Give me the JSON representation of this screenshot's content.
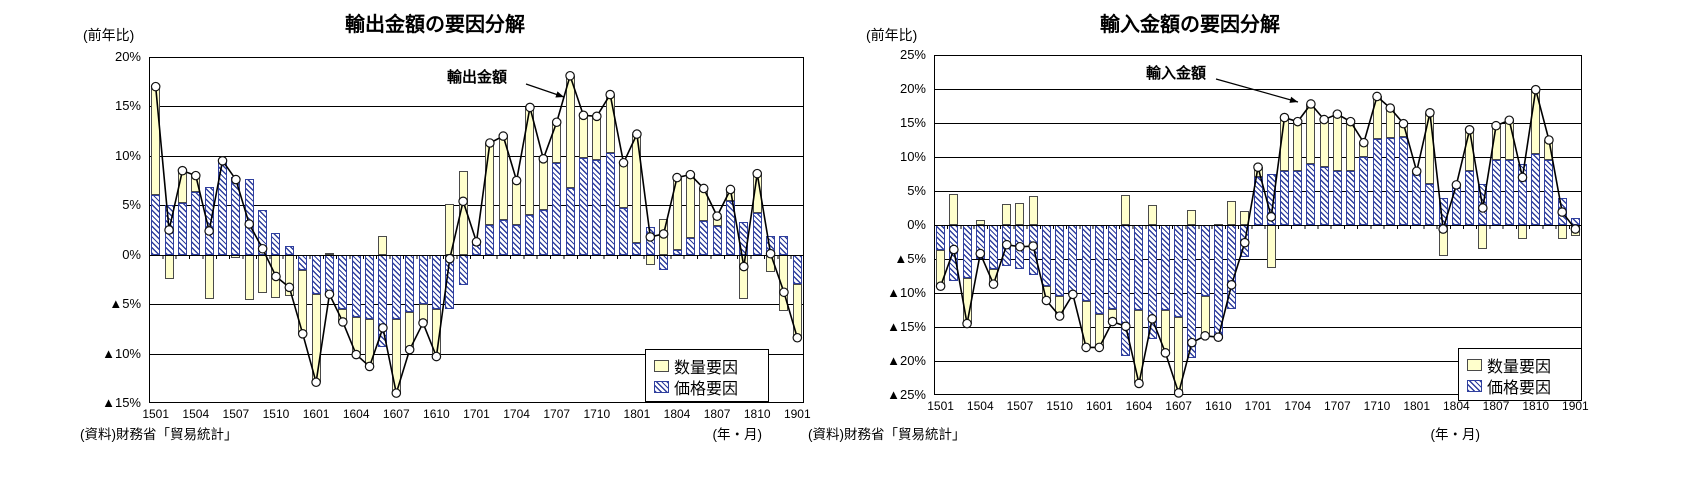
{
  "charts": [
    {
      "title": "輸出金額の要因分解",
      "y_axis_unit_label": "(前年比)",
      "x_axis_unit_label": "(年・月)",
      "source": "(資料)財務省「貿易統計」",
      "annotation_label": "輸出金額",
      "legend": [
        {
          "label": "数量要因",
          "swatch": "quantity"
        },
        {
          "label": "価格要因",
          "swatch": "price"
        }
      ],
      "chart_data": {
        "type": "stacked-bar-line",
        "categories": [
          "1501",
          "1502",
          "1503",
          "1504",
          "1505",
          "1506",
          "1507",
          "1508",
          "1509",
          "1510",
          "1511",
          "1512",
          "1601",
          "1602",
          "1603",
          "1604",
          "1605",
          "1606",
          "1607",
          "1608",
          "1609",
          "1610",
          "1611",
          "1612",
          "1701",
          "1702",
          "1703",
          "1704",
          "1705",
          "1706",
          "1707",
          "1708",
          "1709",
          "1710",
          "1711",
          "1712",
          "1801",
          "1802",
          "1803",
          "1804",
          "1805",
          "1806",
          "1807",
          "1808",
          "1809",
          "1810",
          "1811",
          "1812",
          "1901"
        ],
        "x_tick_labels_shown": [
          "1501",
          "1504",
          "1507",
          "1510",
          "1601",
          "1604",
          "1607",
          "1610",
          "1701",
          "1704",
          "1707",
          "1710",
          "1801",
          "1804",
          "1807",
          "1810",
          "1901"
        ],
        "series": [
          {
            "name": "数量要因",
            "role": "bar-quantity",
            "values": [
              11.0,
              -2.5,
              3.3,
              1.7,
              -4.5,
              0.2,
              -0.3,
              -4.6,
              -3.9,
              -4.4,
              -4.2,
              -6.5,
              -8.9,
              0.2,
              -1.3,
              -3.8,
              -4.8,
              1.9,
              -7.5,
              -3.8,
              -1.9,
              -4.8,
              5.1,
              8.5,
              0.3,
              8.3,
              8.5,
              4.5,
              10.9,
              5.2,
              4.1,
              11.4,
              4.3,
              4.4,
              5.9,
              4.6,
              11.0,
              -1.0,
              3.6,
              7.3,
              6.4,
              3.3,
              1.0,
              1.2,
              -4.5,
              4.0,
              -1.8,
              -5.7,
              -5.4
            ]
          },
          {
            "name": "価格要因",
            "role": "bar-price",
            "values": [
              6.0,
              5.0,
              5.2,
              6.3,
              6.9,
              9.3,
              7.9,
              7.7,
              4.5,
              2.2,
              0.9,
              -1.5,
              -4.0,
              -4.2,
              -5.5,
              -6.3,
              -6.5,
              -9.3,
              -6.5,
              -5.8,
              -5.0,
              -5.5,
              -5.5,
              -3.1,
              1.0,
              3.0,
              3.5,
              3.0,
              4.0,
              4.5,
              9.3,
              6.7,
              9.8,
              9.6,
              10.3,
              4.7,
              1.2,
              2.8,
              -1.5,
              0.5,
              1.7,
              3.4,
              2.9,
              5.4,
              3.3,
              4.2,
              1.9,
              1.9,
              -3.0
            ]
          },
          {
            "name": "輸出金額",
            "role": "line-total",
            "values": [
              17.0,
              2.5,
              8.5,
              8.0,
              2.4,
              9.5,
              7.6,
              3.1,
              0.6,
              -2.2,
              -3.3,
              -8.0,
              -12.9,
              -4.0,
              -6.8,
              -10.1,
              -11.3,
              -7.4,
              -14.0,
              -9.6,
              -6.9,
              -10.3,
              -0.4,
              5.4,
              1.3,
              11.3,
              12.0,
              7.5,
              14.9,
              9.7,
              13.4,
              18.1,
              14.1,
              14.0,
              16.2,
              9.3,
              12.2,
              1.8,
              2.1,
              7.8,
              8.1,
              6.7,
              3.9,
              6.6,
              -1.2,
              8.2,
              0.1,
              -3.8,
              -8.4
            ]
          }
        ],
        "ylim": [
          -15,
          20
        ],
        "ytick_step": 5,
        "negative_tick_prefix": "▲",
        "grid": true,
        "legend_position": "inside-bottom-right"
      }
    },
    {
      "title": "輸入金額の要因分解",
      "y_axis_unit_label": "(前年比)",
      "x_axis_unit_label": "(年・月)",
      "source": "(資料)財務省「貿易統計」",
      "annotation_label": "輸入金額",
      "legend": [
        {
          "label": "数量要因",
          "swatch": "quantity"
        },
        {
          "label": "価格要因",
          "swatch": "price"
        }
      ],
      "chart_data": {
        "type": "stacked-bar-line",
        "categories": [
          "1501",
          "1502",
          "1503",
          "1504",
          "1505",
          "1506",
          "1507",
          "1508",
          "1509",
          "1510",
          "1511",
          "1512",
          "1601",
          "1602",
          "1603",
          "1604",
          "1605",
          "1606",
          "1607",
          "1608",
          "1609",
          "1610",
          "1611",
          "1612",
          "1701",
          "1702",
          "1703",
          "1704",
          "1705",
          "1706",
          "1707",
          "1708",
          "1709",
          "1710",
          "1711",
          "1712",
          "1801",
          "1802",
          "1803",
          "1804",
          "1805",
          "1806",
          "1807",
          "1808",
          "1809",
          "1810",
          "1811",
          "1812",
          "1901"
        ],
        "x_tick_labels_shown": [
          "1501",
          "1504",
          "1507",
          "1510",
          "1601",
          "1604",
          "1607",
          "1610",
          "1701",
          "1704",
          "1707",
          "1710",
          "1801",
          "1804",
          "1807",
          "1810",
          "1901"
        ],
        "series": [
          {
            "name": "数量要因",
            "role": "bar-quantity",
            "values": [
              -5.3,
              4.6,
              -6.7,
              0.8,
              -2.2,
              3.1,
              3.2,
              4.3,
              -2.1,
              -3.0,
              -0.2,
              -6.8,
              -4.9,
              -1.8,
              4.4,
              -10.8,
              2.9,
              -6.3,
              -11.2,
              2.2,
              -5.8,
              0.2,
              3.6,
              2.1,
              1.5,
              -6.3,
              7.8,
              7.2,
              8.8,
              7.0,
              8.3,
              7.2,
              2.1,
              6.3,
              4.4,
              1.9,
              0.4,
              10.5,
              -4.6,
              0.4,
              6.0,
              -3.5,
              5.1,
              5.9,
              -2.0,
              9.4,
              3.0,
              -2.1,
              -1.6
            ]
          },
          {
            "name": "価格要因",
            "role": "bar-price",
            "values": [
              -3.7,
              -8.2,
              -7.8,
              -5.0,
              -6.5,
              -6.0,
              -6.4,
              -7.4,
              -9.0,
              -10.4,
              -10.0,
              -11.2,
              -13.1,
              -12.4,
              -19.3,
              -12.5,
              -16.7,
              -12.5,
              -13.5,
              -19.5,
              -10.5,
              -16.7,
              -12.4,
              -4.7,
              7.0,
              7.5,
              8.0,
              8.0,
              9.0,
              8.5,
              8.0,
              8.0,
              10.0,
              12.6,
              12.8,
              13.0,
              7.5,
              6.0,
              4.0,
              5.5,
              8.0,
              6.0,
              9.5,
              9.5,
              9.0,
              10.5,
              9.5,
              4.0,
              1.0
            ]
          },
          {
            "name": "輸入金額",
            "role": "line-total",
            "values": [
              -9.0,
              -3.6,
              -14.5,
              -4.2,
              -8.7,
              -2.9,
              -3.2,
              -3.1,
              -11.1,
              -13.4,
              -10.2,
              -18.0,
              -18.0,
              -14.2,
              -14.9,
              -23.3,
              -13.8,
              -18.8,
              -24.7,
              -17.3,
              -16.3,
              -16.5,
              -8.8,
              -2.6,
              8.5,
              1.2,
              15.8,
              15.2,
              17.8,
              15.5,
              16.3,
              15.2,
              12.1,
              18.9,
              17.2,
              14.9,
              7.9,
              16.5,
              -0.6,
              5.9,
              14.0,
              2.5,
              14.6,
              15.4,
              7.0,
              19.9,
              12.5,
              1.9,
              -0.6
            ]
          }
        ],
        "ylim": [
          -25,
          25
        ],
        "ytick_step": 5,
        "negative_tick_prefix": "▲",
        "grid": true,
        "legend_position": "inside-bottom-right"
      }
    }
  ],
  "colors": {
    "quantity_fill": "#FFFFCC",
    "quantity_border": "#4a4a4a",
    "price_stripe": "#2F3F9E",
    "line": "#000000",
    "marker_fill": "#FFFFFF",
    "grid": "#000000"
  }
}
